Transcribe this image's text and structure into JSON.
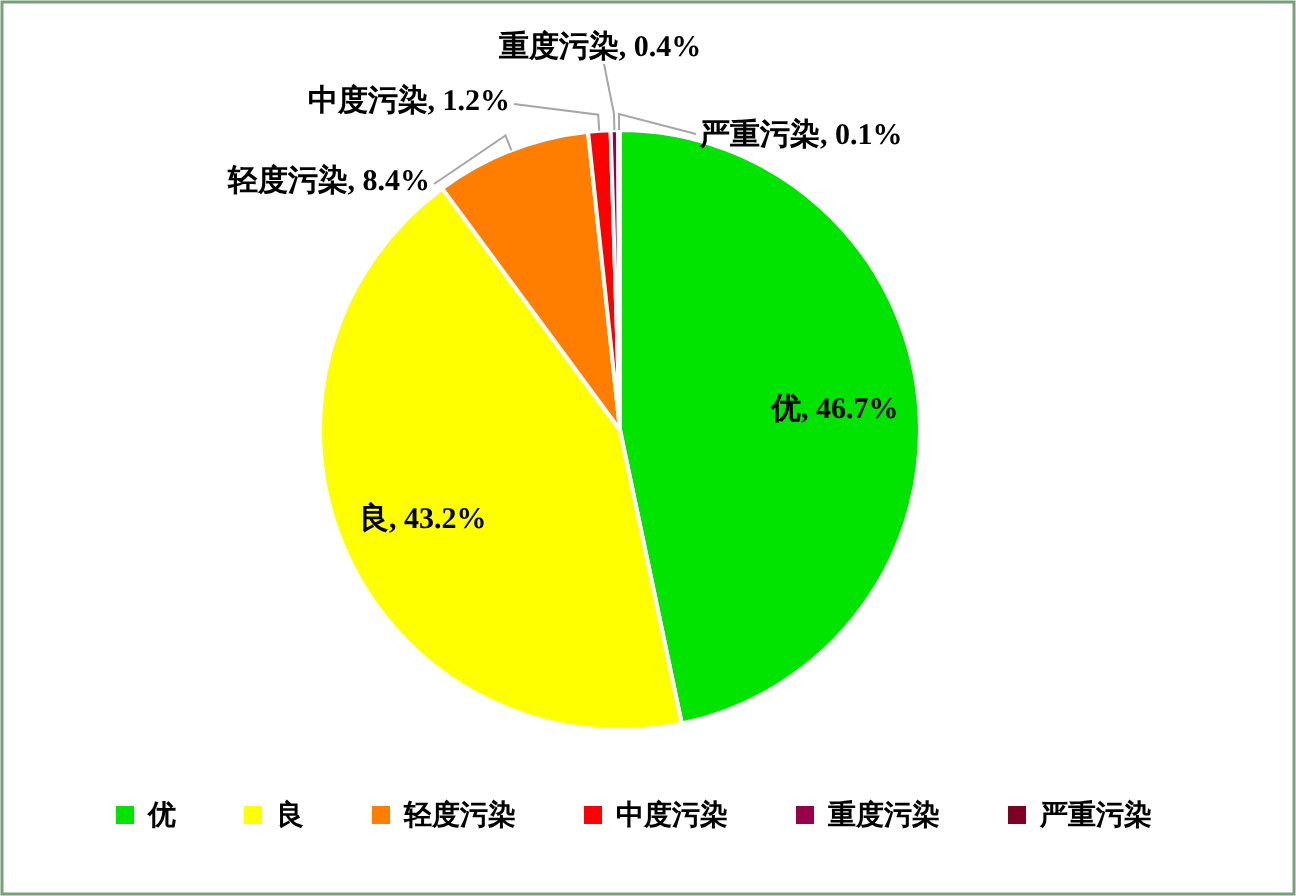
{
  "chart_data": {
    "type": "pie",
    "categories": [
      "优",
      "良",
      "轻度污染",
      "中度污染",
      "重度污染",
      "严重污染"
    ],
    "values": [
      46.7,
      43.2,
      8.4,
      1.2,
      0.4,
      0.1
    ],
    "value_labels": [
      ", 46.7%",
      ", 43.2%",
      ", 8.4%",
      ", 1.2%",
      ", 0.4%",
      ", 0.1%"
    ],
    "colors": [
      "#00e400",
      "#ffff00",
      "#ff7e00",
      "#ff0000",
      "#99004c",
      "#7e0023"
    ],
    "legend": "bottom"
  }
}
